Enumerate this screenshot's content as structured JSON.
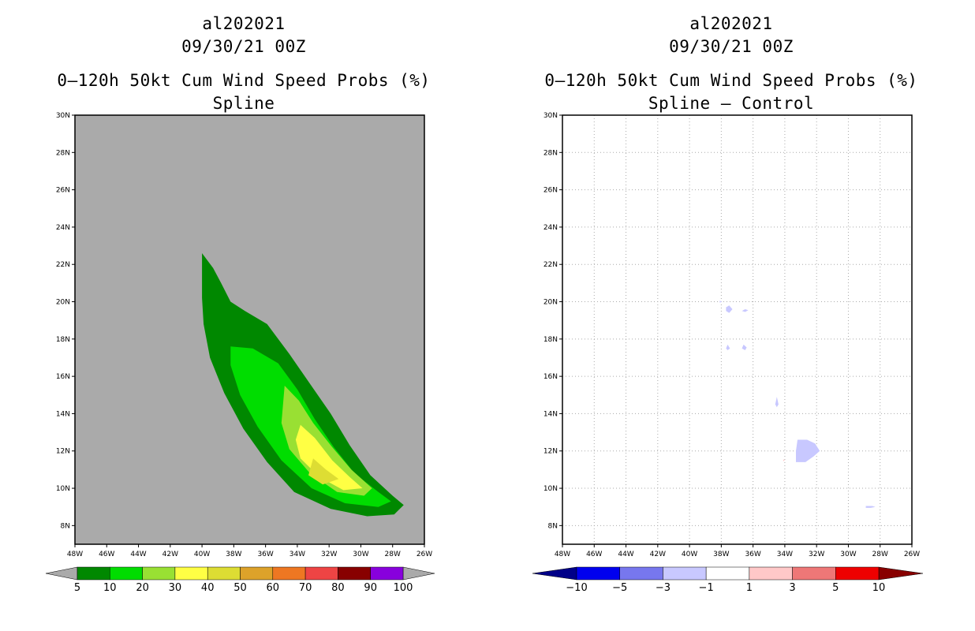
{
  "left": {
    "line1": "al202021",
    "line2": "09/30/21 00Z",
    "line3": "0–120h 50kt Cum Wind Speed Probs (%)",
    "line4": "Spline"
  },
  "right": {
    "line1": "al202021",
    "line2": "09/30/21 00Z",
    "line3": "0–120h 50kt Cum Wind Speed Probs (%)",
    "line4": "Spline – Control"
  },
  "chart_data": [
    {
      "type": "heatmap",
      "title": "0–120h 50kt Cum Wind Speed Probs (%) Spline",
      "lon_range": [
        -48,
        -26
      ],
      "lat_range": [
        7,
        30
      ],
      "x_ticks": [
        "48W",
        "46W",
        "44W",
        "42W",
        "40W",
        "38W",
        "36W",
        "34W",
        "32W",
        "30W",
        "28W",
        "26W"
      ],
      "y_ticks": [
        "8N",
        "10N",
        "12N",
        "14N",
        "16N",
        "18N",
        "20N",
        "22N",
        "24N",
        "26N",
        "28N",
        "30N"
      ],
      "background_color": "#aaaaaa",
      "contours": [
        {
          "level": 5,
          "color": "#008800",
          "polygon": [
            [
              -40.0,
              22.6
            ],
            [
              -39.3,
              21.8
            ],
            [
              -38.8,
              21.0
            ],
            [
              -38.2,
              20.0
            ],
            [
              -37.3,
              19.5
            ],
            [
              -35.9,
              18.8
            ],
            [
              -34.5,
              17.2
            ],
            [
              -33.2,
              15.6
            ],
            [
              -31.9,
              14.0
            ],
            [
              -30.7,
              12.3
            ],
            [
              -29.4,
              10.7
            ],
            [
              -28.0,
              9.6
            ],
            [
              -27.3,
              9.1
            ],
            [
              -27.9,
              8.6
            ],
            [
              -29.6,
              8.5
            ],
            [
              -31.9,
              8.9
            ],
            [
              -34.2,
              9.8
            ],
            [
              -35.9,
              11.4
            ],
            [
              -37.4,
              13.2
            ],
            [
              -38.6,
              15.1
            ],
            [
              -39.5,
              17.0
            ],
            [
              -39.9,
              18.8
            ],
            [
              -40.0,
              20.2
            ],
            [
              -40.0,
              22.6
            ]
          ]
        },
        {
          "level": 10,
          "color": "#00dd00",
          "polygon": [
            [
              -38.2,
              17.6
            ],
            [
              -36.8,
              17.5
            ],
            [
              -35.2,
              16.7
            ],
            [
              -34.0,
              15.3
            ],
            [
              -32.9,
              13.7
            ],
            [
              -31.7,
              12.2
            ],
            [
              -30.4,
              10.8
            ],
            [
              -28.9,
              9.8
            ],
            [
              -28.1,
              9.3
            ],
            [
              -28.9,
              9.0
            ],
            [
              -31.0,
              9.2
            ],
            [
              -33.1,
              10.0
            ],
            [
              -35.0,
              11.5
            ],
            [
              -36.5,
              13.3
            ],
            [
              -37.6,
              15.0
            ],
            [
              -38.2,
              16.6
            ],
            [
              -38.2,
              17.6
            ]
          ]
        },
        {
          "level": 20,
          "color": "#99e033",
          "polygon": [
            [
              -34.8,
              15.5
            ],
            [
              -33.9,
              14.7
            ],
            [
              -33.0,
              13.5
            ],
            [
              -31.8,
              12.2
            ],
            [
              -30.6,
              11.0
            ],
            [
              -29.3,
              10.0
            ],
            [
              -29.8,
              9.6
            ],
            [
              -31.5,
              9.8
            ],
            [
              -33.2,
              10.8
            ],
            [
              -34.5,
              12.1
            ],
            [
              -35.0,
              13.5
            ],
            [
              -34.8,
              15.5
            ]
          ]
        },
        {
          "level": 30,
          "color": "#ffff44",
          "polygon": [
            [
              -33.8,
              13.4
            ],
            [
              -32.9,
              12.7
            ],
            [
              -31.8,
              11.5
            ],
            [
              -30.7,
              10.6
            ],
            [
              -29.9,
              10.0
            ],
            [
              -31.1,
              9.9
            ],
            [
              -32.6,
              10.6
            ],
            [
              -33.8,
              11.6
            ],
            [
              -34.1,
              12.6
            ],
            [
              -33.8,
              13.4
            ]
          ]
        },
        {
          "level": 40,
          "color": "#dddd33",
          "polygon": [
            [
              -33.0,
              11.6
            ],
            [
              -32.2,
              11.0
            ],
            [
              -31.4,
              10.5
            ],
            [
              -32.4,
              10.2
            ],
            [
              -33.3,
              10.7
            ],
            [
              -33.0,
              11.6
            ]
          ]
        }
      ],
      "colorbar": {
        "labels": [
          "5",
          "10",
          "20",
          "30",
          "40",
          "50",
          "60",
          "70",
          "80",
          "90",
          "100"
        ],
        "colors": [
          "#008800",
          "#00dd00",
          "#99e033",
          "#ffff44",
          "#dddd33",
          "#dda22a",
          "#ee7722",
          "#ee4444",
          "#880000",
          "#8800dd"
        ],
        "under_color": "#aaaaaa",
        "over_color": "#aaaaaa"
      }
    },
    {
      "type": "heatmap",
      "title": "0–120h 50kt Cum Wind Speed Probs (%) Spline – Control",
      "lon_range": [
        -48,
        -26
      ],
      "lat_range": [
        7,
        30
      ],
      "x_ticks": [
        "48W",
        "46W",
        "44W",
        "42W",
        "40W",
        "38W",
        "36W",
        "34W",
        "32W",
        "30W",
        "28W",
        "26W"
      ],
      "y_ticks": [
        "8N",
        "10N",
        "12N",
        "14N",
        "16N",
        "18N",
        "20N",
        "22N",
        "24N",
        "26N",
        "28N",
        "30N"
      ],
      "grid": true,
      "background_color": "#ffffff",
      "contours": [
        {
          "level": -1,
          "color": "#c8c8ff",
          "polygon": [
            [
              -37.7,
              19.7
            ],
            [
              -37.5,
              19.8
            ],
            [
              -37.3,
              19.6
            ],
            [
              -37.5,
              19.4
            ],
            [
              -37.7,
              19.5
            ],
            [
              -37.7,
              19.7
            ]
          ]
        },
        {
          "level": -1,
          "color": "#c8c8ff",
          "polygon": [
            [
              -36.5,
              19.6
            ],
            [
              -36.3,
              19.55
            ],
            [
              -36.5,
              19.45
            ],
            [
              -36.7,
              19.5
            ],
            [
              -36.5,
              19.6
            ]
          ]
        },
        {
          "level": -1,
          "color": "#c8c8ff",
          "polygon": [
            [
              -38.1,
              20.05
            ],
            [
              -37.95,
              20.0
            ],
            [
              -38.1,
              19.95
            ],
            [
              -38.1,
              20.05
            ]
          ]
        },
        {
          "level": -1,
          "color": "#c8c8ff",
          "polygon": [
            [
              -37.6,
              17.7
            ],
            [
              -37.45,
              17.5
            ],
            [
              -37.6,
              17.4
            ],
            [
              -37.7,
              17.5
            ],
            [
              -37.6,
              17.7
            ]
          ]
        },
        {
          "level": -1,
          "color": "#c8c8ff",
          "polygon": [
            [
              -36.6,
              17.7
            ],
            [
              -36.4,
              17.55
            ],
            [
              -36.5,
              17.4
            ],
            [
              -36.7,
              17.5
            ],
            [
              -36.6,
              17.7
            ]
          ]
        },
        {
          "level": -1,
          "color": "#c8c8ff",
          "polygon": [
            [
              -34.5,
              14.9
            ],
            [
              -34.4,
              14.5
            ],
            [
              -34.5,
              14.35
            ],
            [
              -34.6,
              14.5
            ],
            [
              -34.5,
              14.9
            ]
          ]
        },
        {
          "level": -1,
          "color": "#c8c8ff",
          "polygon": [
            [
              -33.2,
              12.6
            ],
            [
              -32.6,
              12.6
            ],
            [
              -32.1,
              12.4
            ],
            [
              -31.8,
              12.0
            ],
            [
              -32.2,
              11.7
            ],
            [
              -32.7,
              11.4
            ],
            [
              -33.3,
              11.4
            ],
            [
              -33.3,
              12.0
            ],
            [
              -33.2,
              12.6
            ]
          ]
        },
        {
          "level": -1,
          "color": "#c8c8ff",
          "polygon": [
            [
              -28.9,
              9.05
            ],
            [
              -28.5,
              9.05
            ],
            [
              -28.3,
              9.0
            ],
            [
              -28.6,
              8.95
            ],
            [
              -28.9,
              8.95
            ],
            [
              -28.9,
              9.05
            ]
          ]
        },
        {
          "level": 1,
          "color": "#ffc8c8",
          "polygon": [
            [
              -34.1,
              11.55
            ],
            [
              -34.0,
              11.5
            ],
            [
              -34.1,
              11.45
            ],
            [
              -34.1,
              11.55
            ]
          ]
        }
      ],
      "colorbar": {
        "labels": [
          "−10",
          "−5",
          "−3",
          "−1",
          "1",
          "3",
          "5",
          "10"
        ],
        "colors": [
          "#0000ee",
          "#7777ee",
          "#c8c8ff",
          "#ffffff",
          "#ffc8c8",
          "#ee7777",
          "#ee0000"
        ],
        "under_color": "#000088",
        "over_color": "#880000"
      }
    }
  ]
}
